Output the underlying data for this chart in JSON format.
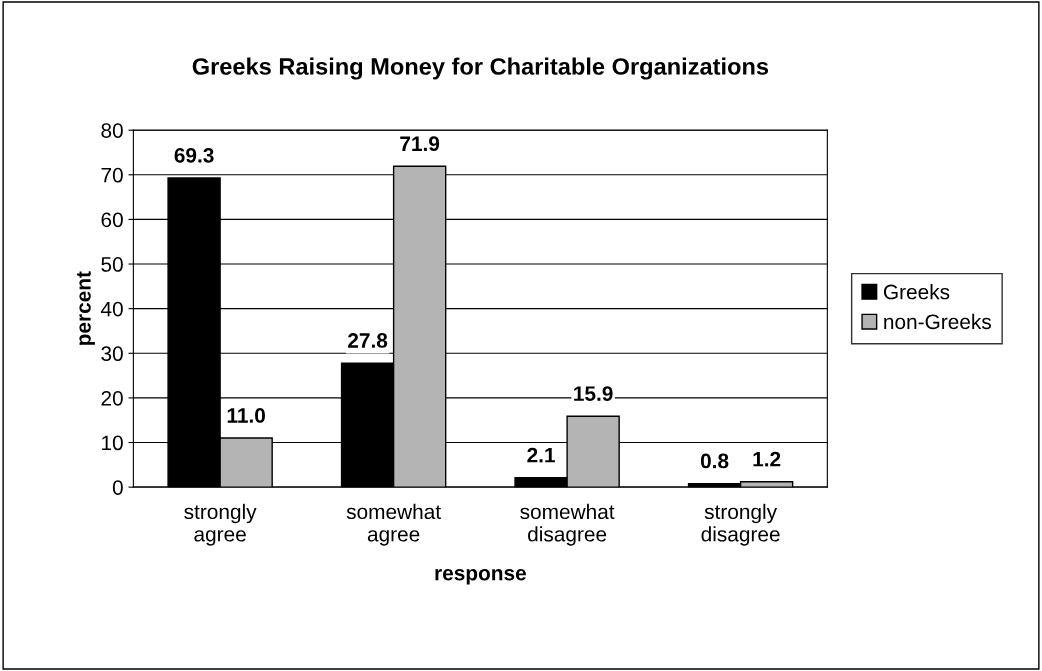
{
  "chart_data": {
    "type": "bar",
    "title": "Greeks Raising Money for Charitable Organizations",
    "xlabel": "response",
    "ylabel": "percent",
    "categories": [
      "strongly\nagree",
      "somewhat\nagree",
      "somewhat\ndisagree",
      "strongly\ndisagree"
    ],
    "series": [
      {
        "name": "Greeks",
        "color": "#000000",
        "values": [
          69.3,
          27.8,
          2.1,
          0.8
        ],
        "value_labels": [
          "69.3",
          "27.8",
          "2.1",
          "0.8"
        ]
      },
      {
        "name": "non-Greeks",
        "color": "#b4b4b4",
        "values": [
          11.0,
          71.9,
          15.9,
          1.2
        ],
        "value_labels": [
          "11.0",
          "71.9",
          "15.9",
          "1.2"
        ]
      }
    ],
    "ylim": [
      0,
      80
    ],
    "yticks": [
      0,
      10,
      20,
      30,
      40,
      50,
      60,
      70,
      80
    ],
    "grid": "y",
    "legend": "right"
  }
}
